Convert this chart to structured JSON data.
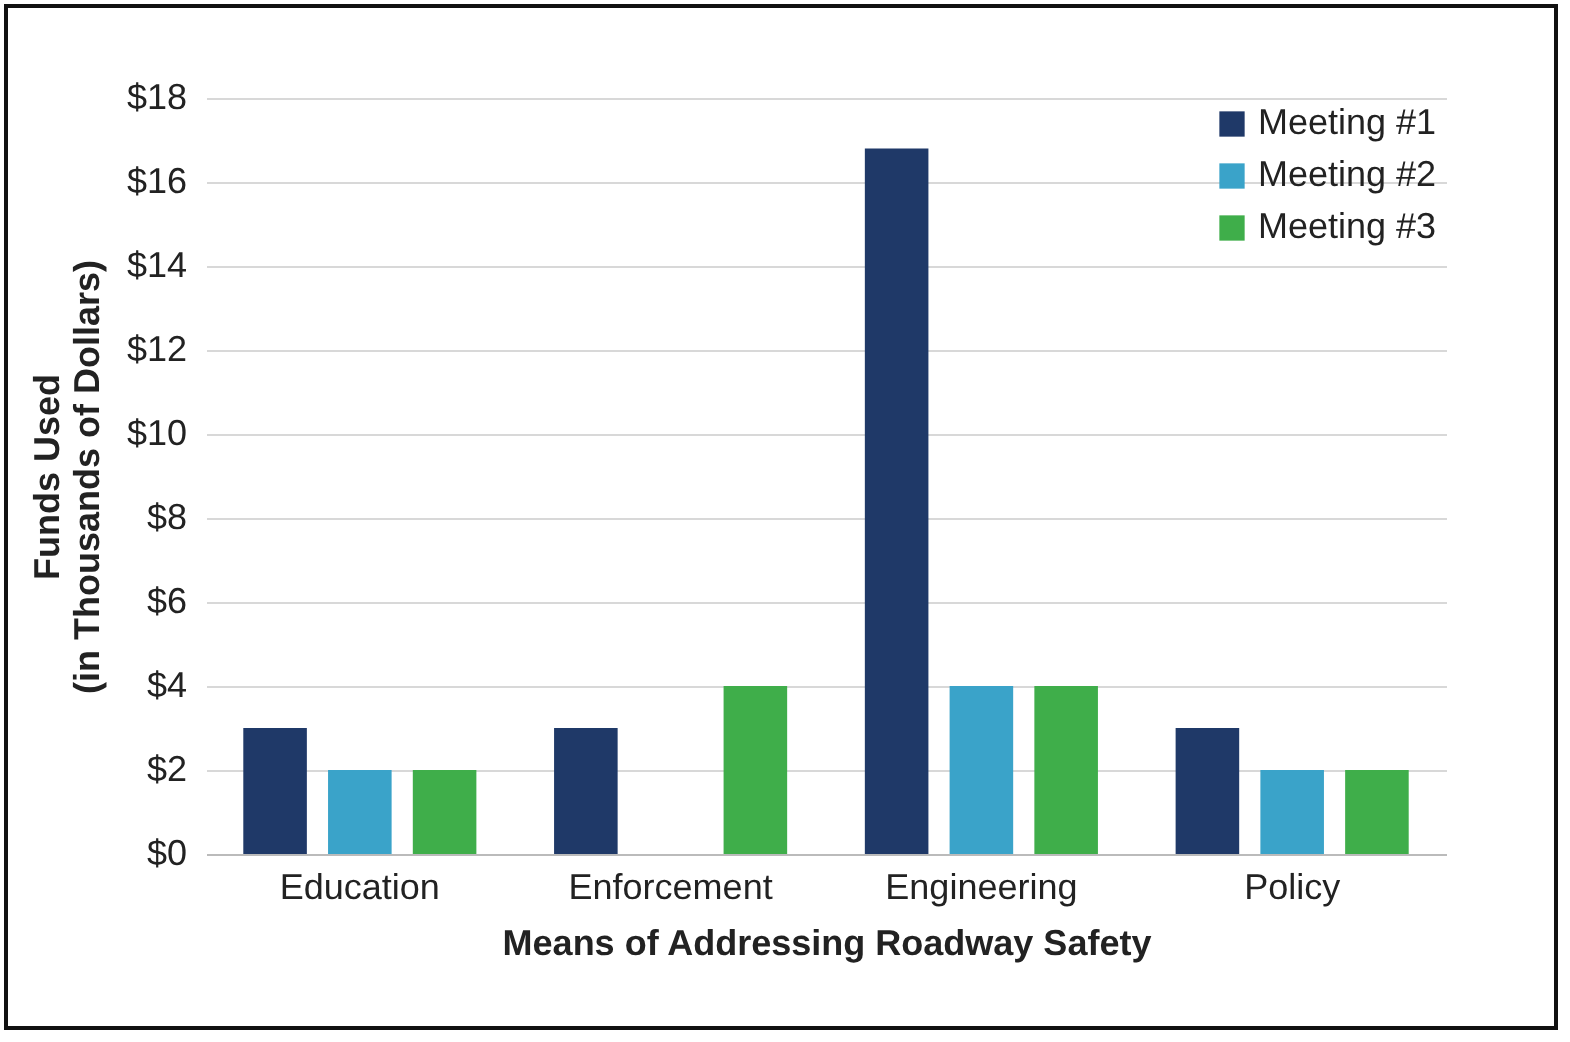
{
  "chart_data": {
    "type": "bar",
    "xlabel": "Means of Addressing Roadway Safety",
    "ylabel": "Funds Used\n(in Thousands of Dollars)",
    "categories": [
      "Education",
      "Enforcement",
      "Engineering",
      "Policy"
    ],
    "series": [
      {
        "name": "Meeting #1",
        "color": "#1f3968",
        "values": [
          3,
          3,
          16.8,
          3
        ]
      },
      {
        "name": "Meeting #2",
        "color": "#3aa3c9",
        "values": [
          2,
          0,
          4,
          2
        ]
      },
      {
        "name": "Meeting #3",
        "color": "#3fae4a",
        "values": [
          2,
          4,
          4,
          2
        ]
      }
    ],
    "ylim": [
      0,
      18
    ],
    "yticks": [
      {
        "value": 0,
        "label": "$0"
      },
      {
        "value": 2,
        "label": "$2"
      },
      {
        "value": 4,
        "label": "$4"
      },
      {
        "value": 6,
        "label": "$6"
      },
      {
        "value": 8,
        "label": "$8"
      },
      {
        "value": 10,
        "label": "$10"
      },
      {
        "value": 12,
        "label": "$12"
      },
      {
        "value": 14,
        "label": "$14"
      },
      {
        "value": 16,
        "label": "$16"
      },
      {
        "value": 18,
        "label": "$18"
      }
    ],
    "grid": "y",
    "legend": "top right"
  }
}
